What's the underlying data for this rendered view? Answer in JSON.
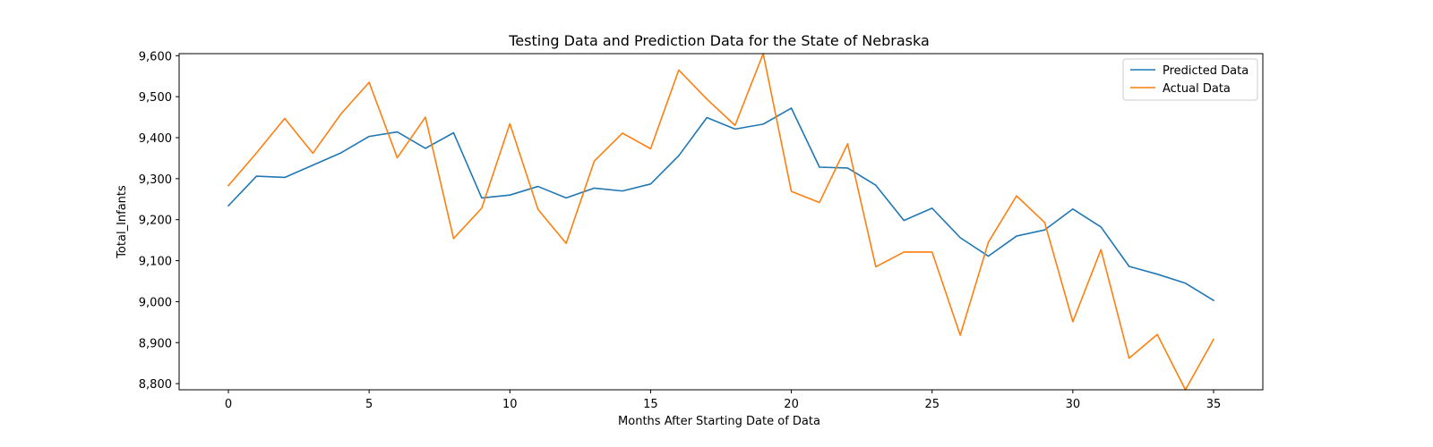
{
  "chart_data": {
    "type": "line",
    "title": "Testing Data and Prediction Data for the State of Nebraska",
    "xlabel": "Months After Starting Date of Data",
    "ylabel": "Total_Infants",
    "xlim": [
      -1.75,
      36.75
    ],
    "ylim": [
      8785,
      9605
    ],
    "xticks": [
      0,
      5,
      10,
      15,
      20,
      25,
      30,
      35
    ],
    "xtick_labels": [
      "0",
      "5",
      "10",
      "15",
      "20",
      "25",
      "30",
      "35"
    ],
    "yticks": [
      8800,
      8900,
      9000,
      9100,
      9200,
      9300,
      9400,
      9500,
      9600
    ],
    "ytick_labels": [
      "8,800",
      "8,900",
      "9,000",
      "9,100",
      "9,200",
      "9,300",
      "9,400",
      "9,500",
      "9,600"
    ],
    "grid": false,
    "legend_position": "top-right",
    "x": [
      0,
      1,
      2,
      3,
      4,
      5,
      6,
      7,
      8,
      9,
      10,
      11,
      12,
      13,
      14,
      15,
      16,
      17,
      18,
      19,
      20,
      21,
      22,
      23,
      24,
      25,
      26,
      27,
      28,
      29,
      30,
      31,
      32,
      33,
      34,
      35
    ],
    "series": [
      {
        "name": "Predicted Data",
        "color": "#1f77b4",
        "values": [
          9234,
          9306,
          9303,
          9333,
          9363,
          9403,
          9414,
          9374,
          9412,
          9253,
          9260,
          9281,
          9253,
          9277,
          9270,
          9287,
          9356,
          9449,
          9421,
          9433,
          9472,
          9328,
          9326,
          9284,
          9198,
          9228,
          9156,
          9111,
          9160,
          9175,
          9226,
          9182,
          9086,
          9067,
          9045,
          9003
        ]
      },
      {
        "name": "Actual Data",
        "color": "#ff7f0e",
        "values": [
          9283,
          9363,
          9447,
          9362,
          9458,
          9535,
          9351,
          9450,
          9154,
          9228,
          9434,
          9225,
          9142,
          9343,
          9411,
          9373,
          9565,
          9494,
          9430,
          9605,
          9269,
          9242,
          9385,
          9085,
          9121,
          9121,
          8918,
          9145,
          9258,
          9193,
          8951,
          9127,
          8862,
          8920,
          8785,
          8908
        ]
      }
    ]
  }
}
